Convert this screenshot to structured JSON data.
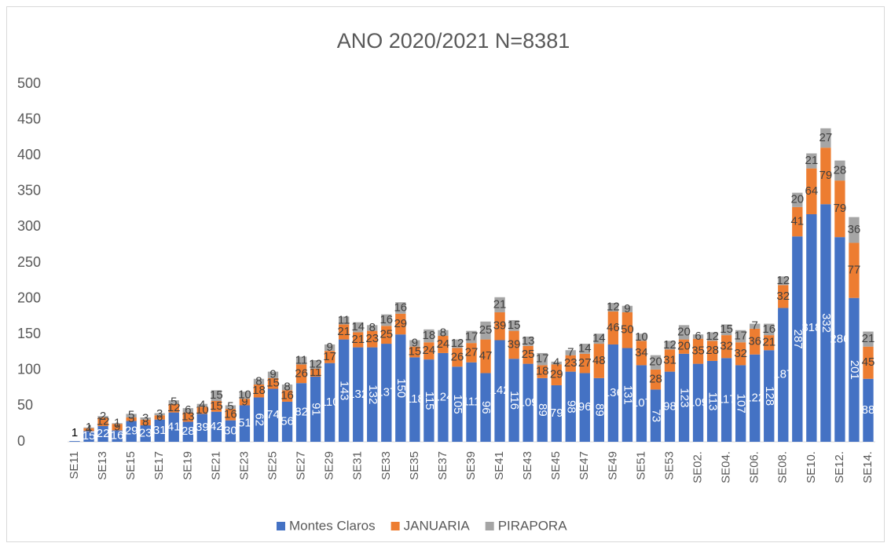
{
  "chart_data": {
    "type": "stacked-bar",
    "title": "ANO 2020/2021 N=8381",
    "categories": [
      "SE11",
      null,
      "SE13",
      null,
      "SE15",
      null,
      "SE17",
      null,
      "SE19",
      null,
      "SE21",
      null,
      "SE23",
      null,
      "SE25",
      null,
      "SE27",
      null,
      "SE29",
      null,
      "SE31",
      null,
      "SE33",
      null,
      "SE35",
      null,
      "SE37",
      null,
      "SE39",
      null,
      "SE41",
      null,
      "SE43",
      null,
      "SE45",
      null,
      "SE47",
      null,
      "SE49",
      null,
      "SE51",
      null,
      "SE53",
      null,
      "SE02.",
      null,
      "SE04.",
      null,
      "SE06.",
      null,
      "SE08.",
      null,
      "SE10.",
      null,
      "SE12.",
      null,
      "SE14."
    ],
    "series": [
      {
        "name": "Montes Claros",
        "color": "#4472c4",
        "values": [
          1,
          15,
          22,
          16,
          29,
          23,
          31,
          41,
          28,
          39,
          42,
          30,
          51,
          62,
          74,
          56,
          82,
          91,
          110,
          143,
          132,
          132,
          137,
          150,
          118,
          115,
          124,
          105,
          111,
          96,
          142,
          116,
          109,
          89,
          79,
          98,
          96,
          89,
          136,
          131,
          107,
          73,
          98,
          123,
          109,
          113,
          117,
          107,
          122,
          128,
          187,
          287,
          318,
          332,
          286,
          201,
          88
        ]
      },
      {
        "name": "JANUARIA",
        "color": "#ed7d31",
        "values": [
          0,
          4,
          12,
          9,
          5,
          8,
          6,
          12,
          13,
          10,
          15,
          16,
          9,
          18,
          15,
          16,
          26,
          11,
          17,
          21,
          21,
          23,
          25,
          29,
          15,
          24,
          24,
          26,
          27,
          47,
          39,
          39,
          25,
          18,
          29,
          23,
          27,
          48,
          46,
          50,
          34,
          28,
          31,
          20,
          35,
          28,
          32,
          32,
          36,
          21,
          32,
          41,
          64,
          79,
          79,
          77,
          45
        ]
      },
      {
        "name": "PIRAPORA",
        "color": "#a5a5a5",
        "values": [
          0,
          1,
          2,
          1,
          5,
          3,
          3,
          5,
          6,
          4,
          15,
          5,
          10,
          8,
          9,
          8,
          11,
          12,
          9,
          11,
          14,
          8,
          16,
          16,
          9,
          18,
          8,
          12,
          17,
          25,
          21,
          15,
          13,
          17,
          4,
          7,
          14,
          14,
          12,
          9,
          10,
          20,
          12,
          20,
          6,
          12,
          15,
          17,
          7,
          16,
          12,
          20,
          21,
          27,
          28,
          36,
          21
        ]
      }
    ],
    "ylim": [
      0,
      500
    ],
    "yticks": [
      0,
      50,
      100,
      150,
      200,
      250,
      300,
      350,
      400,
      450,
      500
    ],
    "legend": "bottom"
  }
}
